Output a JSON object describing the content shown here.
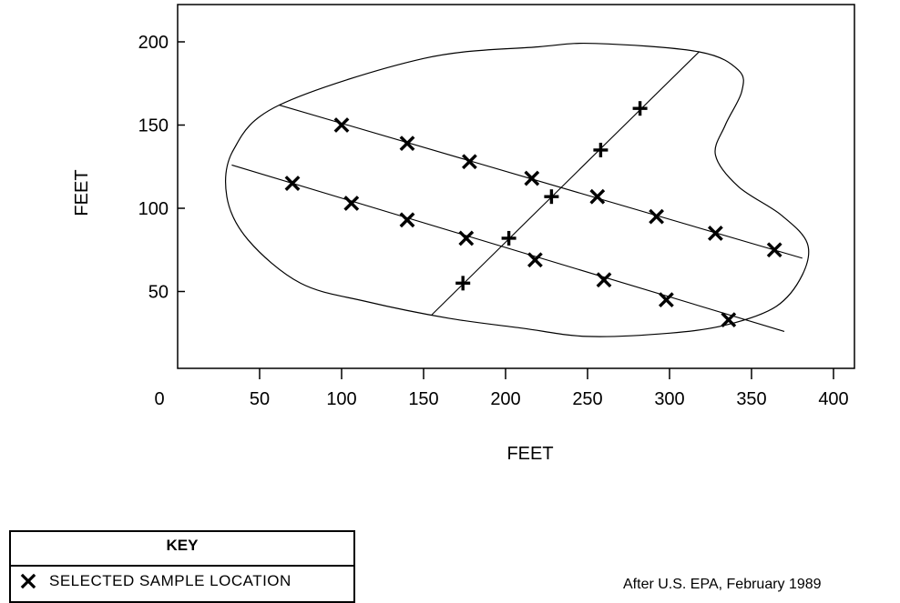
{
  "chart_data": {
    "type": "scatter",
    "xlabel": "FEET",
    "ylabel": "FEET",
    "xlim": [
      0,
      410
    ],
    "ylim": [
      10,
      220
    ],
    "x_ticks": [
      50,
      100,
      150,
      200,
      250,
      300,
      350,
      400
    ],
    "y_ticks": [
      50,
      100,
      150,
      200
    ],
    "origin_label": "0",
    "series": [
      {
        "name": "SELECTED SAMPLE LOCATION",
        "marker": "x",
        "points": [
          [
            100,
            150
          ],
          [
            140,
            139
          ],
          [
            178,
            128
          ],
          [
            216,
            118
          ],
          [
            256,
            107
          ],
          [
            292,
            95
          ],
          [
            328,
            85
          ],
          [
            364,
            75
          ],
          [
            70,
            115
          ],
          [
            106,
            103
          ],
          [
            140,
            93
          ],
          [
            176,
            82
          ],
          [
            218,
            69
          ],
          [
            260,
            57
          ],
          [
            298,
            45
          ],
          [
            336,
            33
          ]
        ]
      },
      {
        "marker": "+",
        "points": [
          [
            174,
            55
          ],
          [
            202,
            82
          ],
          [
            228,
            107
          ],
          [
            258,
            135
          ],
          [
            282,
            160
          ]
        ]
      }
    ],
    "transects": [
      [
        [
          62,
          162
        ],
        [
          381,
          70
        ]
      ],
      [
        [
          33,
          126
        ],
        [
          370,
          26
        ]
      ],
      [
        [
          155,
          36
        ],
        [
          318,
          194
        ]
      ]
    ],
    "boundary": [
      [
        62,
        162
      ],
      [
        150,
        190
      ],
      [
        220,
        197
      ],
      [
        255,
        199
      ],
      [
        318,
        194
      ],
      [
        342,
        183
      ],
      [
        344,
        170
      ],
      [
        334,
        150
      ],
      [
        328,
        132
      ],
      [
        342,
        113
      ],
      [
        368,
        96
      ],
      [
        384,
        79
      ],
      [
        381,
        60
      ],
      [
        365,
        41
      ],
      [
        335,
        30
      ],
      [
        300,
        25
      ],
      [
        250,
        23
      ],
      [
        210,
        28
      ],
      [
        165,
        34
      ],
      [
        115,
        44
      ],
      [
        75,
        55
      ],
      [
        43,
        81
      ],
      [
        30,
        107
      ],
      [
        34,
        135
      ],
      [
        62,
        162
      ]
    ],
    "key": {
      "title": "KEY",
      "items": [
        {
          "marker": "x",
          "label": "SELECTED SAMPLE LOCATION"
        }
      ]
    },
    "source_note": "After U.S. EPA, February 1989"
  }
}
